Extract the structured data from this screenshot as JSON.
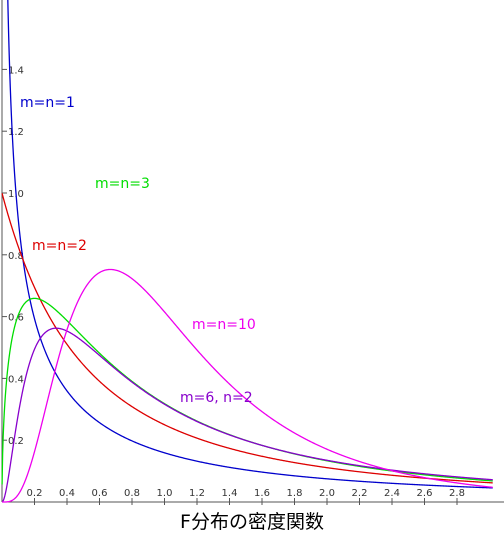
{
  "chart_data": {
    "type": "line",
    "title": "F分布の密度関数",
    "xlabel": "",
    "ylabel": "",
    "xlim": [
      0,
      3.0
    ],
    "ylim": [
      0,
      1.6
    ],
    "x_ticks": [
      "0.2",
      "0.4",
      "0.6",
      "0.8",
      "1.0",
      "1.2",
      "1.4",
      "1.6",
      "1.8",
      "2.0",
      "2.2",
      "2.4",
      "2.6",
      "2.8"
    ],
    "y_ticks": [
      "0.2",
      "0.4",
      "0.6",
      "0.8",
      "1.0",
      "1.2",
      "1.4"
    ],
    "grid": false,
    "series": [
      {
        "name": "m=n=1",
        "m": 1,
        "n": 1,
        "color": "#0000cc"
      },
      {
        "name": "m=n=2",
        "m": 2,
        "n": 2,
        "color": "#dd0000"
      },
      {
        "name": "m=n=3",
        "m": 3,
        "n": 3,
        "color": "#00dd00"
      },
      {
        "name": "m=6, n=2",
        "m": 6,
        "n": 2,
        "color": "#8800cc"
      },
      {
        "name": "m=n=10",
        "m": 10,
        "n": 10,
        "color": "#ee00ee"
      }
    ]
  }
}
